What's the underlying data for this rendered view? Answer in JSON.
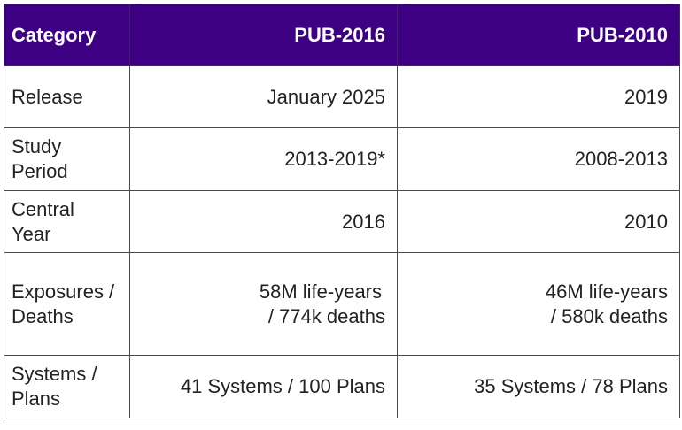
{
  "table": {
    "header": {
      "category": "Category",
      "col1": "PUB-2016",
      "col2": "PUB-2010"
    },
    "header_color": "#3d0083",
    "rows": [
      {
        "category": [
          "Release"
        ],
        "pub2016": [
          "January 2025"
        ],
        "pub2010": [
          "2019"
        ]
      },
      {
        "category": [
          "Study",
          "Period"
        ],
        "pub2016": [
          "2013-2019*"
        ],
        "pub2010": [
          "2008-2013"
        ]
      },
      {
        "category": [
          "Central",
          "Year"
        ],
        "pub2016": [
          "2016"
        ],
        "pub2010": [
          "2010"
        ]
      },
      {
        "category": [
          "Exposures /",
          "Deaths"
        ],
        "pub2016": [
          "58M life-years",
          "/ 774k deaths"
        ],
        "pub2010": [
          "46M life-years",
          "/ 580k deaths"
        ]
      },
      {
        "category": [
          "Systems /",
          "Plans"
        ],
        "pub2016": [
          "41 Systems / 100 Plans"
        ],
        "pub2010": [
          "35 Systems / 78 Plans"
        ]
      }
    ]
  }
}
